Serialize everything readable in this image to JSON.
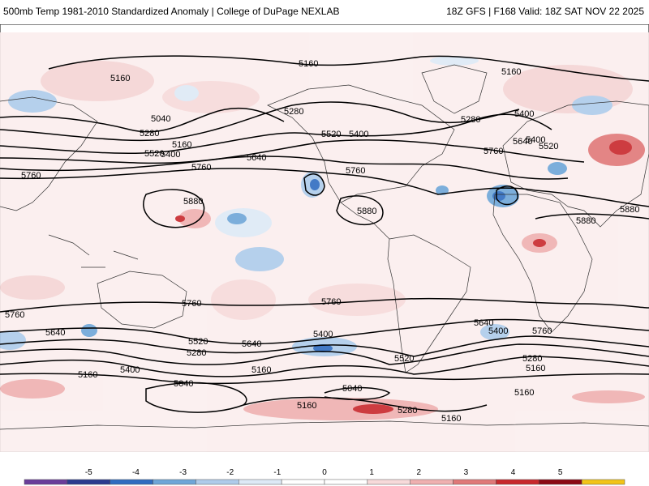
{
  "header": {
    "title_left": "500mb Temp 1981-2010 Standardized Anomaly | College of DuPage NEXLAB",
    "title_right": "18Z GFS | F168 Valid: 18Z SAT NOV 22 2025"
  },
  "colors": {
    "colorbar": [
      "#6a3d9a",
      "#2b3b8f",
      "#2f6cc0",
      "#6ea6d8",
      "#aecbea",
      "#dde9f6",
      "#ffffff",
      "#ffffff",
      "#f7dada",
      "#efb0b0",
      "#e07878",
      "#c8282c",
      "#8b0a14",
      "#f2c418"
    ]
  },
  "colorbar": {
    "ticks": [
      "-5",
      "-4",
      "-3",
      "-2",
      "-1",
      "0",
      "1",
      "2",
      "3",
      "4",
      "5"
    ]
  },
  "contour_labels": [
    "5160",
    "5040",
    "5280",
    "5400",
    "5520",
    "5640",
    "5760",
    "5880"
  ]
}
